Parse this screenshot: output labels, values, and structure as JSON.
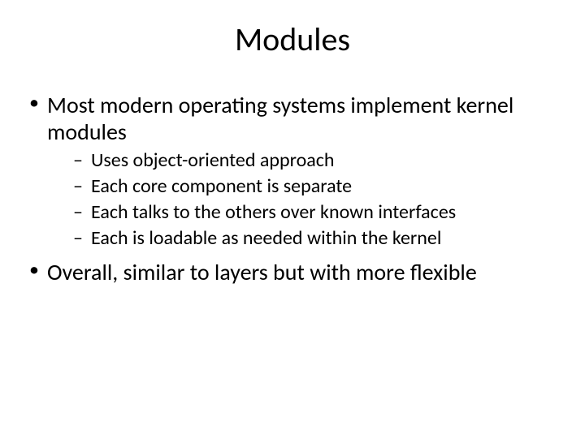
{
  "slide": {
    "title": "Modules",
    "title_fontsize": 40,
    "background_color": "#ffffff",
    "text_color": "#000000",
    "font_family": "Calibri",
    "bullets": [
      {
        "text": "Most modern operating systems implement kernel modules",
        "fontsize": 28,
        "marker": "•",
        "sub": [
          {
            "text": "Uses object-oriented approach",
            "fontsize": 24,
            "marker": "–"
          },
          {
            "text": "Each core component is separate",
            "fontsize": 24,
            "marker": "–"
          },
          {
            "text": "Each talks to the others over known interfaces",
            "fontsize": 24,
            "marker": "–"
          },
          {
            "text": "Each is loadable as needed within the kernel",
            "fontsize": 24,
            "marker": "–"
          }
        ]
      },
      {
        "text": "Overall, similar to layers but with more flexible",
        "fontsize": 28,
        "marker": "•",
        "sub": []
      }
    ]
  }
}
